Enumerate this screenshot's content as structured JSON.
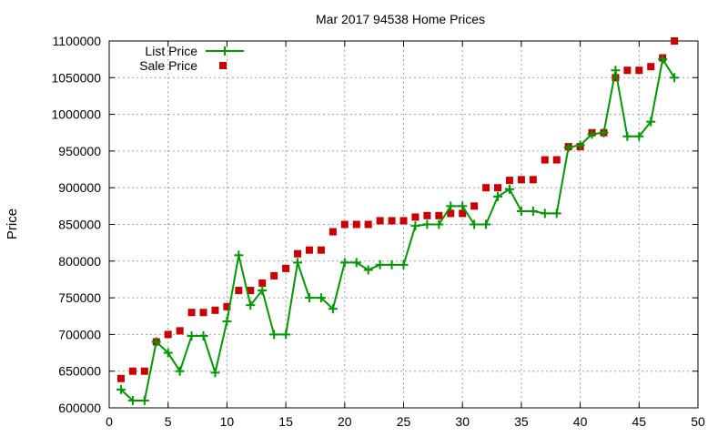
{
  "chart_data": {
    "type": "line",
    "title": "Mar 2017 94538 Home Prices",
    "xlabel": "",
    "ylabel": "Price",
    "xlim": [
      0,
      50
    ],
    "ylim": [
      600000,
      1100000
    ],
    "x_ticks": [
      0,
      5,
      10,
      15,
      20,
      25,
      30,
      35,
      40,
      45,
      50
    ],
    "y_ticks": [
      600000,
      650000,
      700000,
      750000,
      800000,
      850000,
      900000,
      950000,
      1000000,
      1050000,
      1100000
    ],
    "grid": true,
    "legend_position": "top-left",
    "series": [
      {
        "name": "List Price",
        "color": "#009900",
        "style": "line-plus",
        "x": [
          1,
          2,
          3,
          4,
          5,
          6,
          7,
          8,
          9,
          10,
          11,
          12,
          13,
          14,
          15,
          16,
          17,
          18,
          19,
          20,
          21,
          22,
          23,
          24,
          25,
          26,
          27,
          28,
          29,
          30,
          31,
          32,
          33,
          34,
          35,
          36,
          37,
          38,
          39,
          40,
          41,
          42,
          43,
          44,
          45,
          46,
          47,
          48
        ],
        "values": [
          625000,
          610000,
          610000,
          690000,
          675000,
          650000,
          698000,
          698000,
          648000,
          718000,
          808000,
          740000,
          760000,
          700000,
          700000,
          798000,
          750000,
          750000,
          735000,
          798000,
          798000,
          788000,
          795000,
          795000,
          795000,
          848000,
          850000,
          850000,
          875000,
          875000,
          850000,
          850000,
          888000,
          898000,
          868000,
          868000,
          865000,
          865000,
          955000,
          958000,
          973000,
          975000,
          1060000,
          970000,
          970000,
          990000,
          1075000,
          1050000
        ]
      },
      {
        "name": "Sale Price",
        "color": "#cc0000",
        "style": "square",
        "x": [
          1,
          2,
          3,
          4,
          5,
          6,
          7,
          8,
          9,
          10,
          11,
          12,
          13,
          14,
          15,
          16,
          17,
          18,
          19,
          20,
          21,
          22,
          23,
          24,
          25,
          26,
          27,
          28,
          29,
          30,
          31,
          32,
          33,
          34,
          35,
          36,
          37,
          38,
          39,
          40,
          41,
          42,
          43,
          44,
          45,
          46,
          47,
          48
        ],
        "values": [
          640000,
          650000,
          650000,
          690000,
          700000,
          705000,
          730000,
          730000,
          733000,
          738000,
          760000,
          760000,
          770000,
          780000,
          790000,
          810000,
          815000,
          815000,
          840000,
          850000,
          850000,
          850000,
          855000,
          855000,
          855000,
          860000,
          862000,
          862000,
          865000,
          865000,
          875000,
          900000,
          900000,
          910000,
          911000,
          911000,
          938000,
          938000,
          956000,
          956000,
          975000,
          975000,
          1050000,
          1060000,
          1060000,
          1065000,
          1077000,
          1100000
        ]
      }
    ]
  }
}
